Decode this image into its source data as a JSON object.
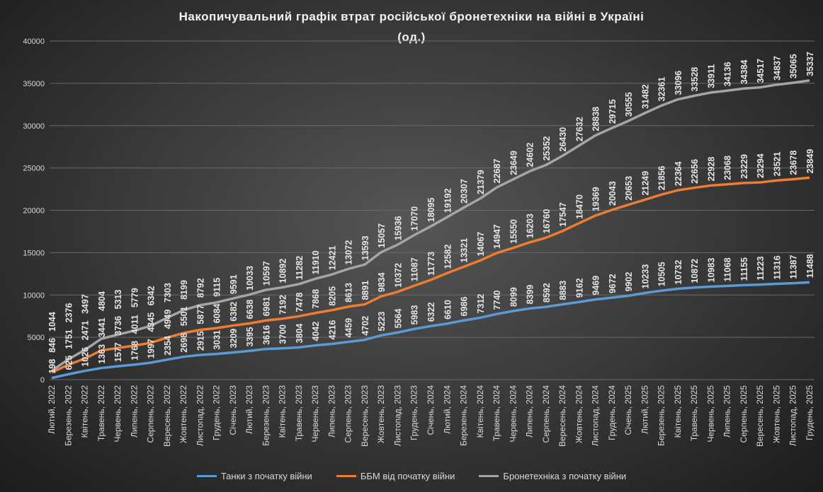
{
  "chart_data": {
    "type": "line",
    "title": "Накопичувальний графік втрат російської бронетехніки на війні в Україні",
    "subtitle": "(од.)",
    "xlabel": "",
    "ylabel": "",
    "ylim": [
      0,
      40000
    ],
    "yticks": [
      "0",
      "5000",
      "10000",
      "15000",
      "20000",
      "25000",
      "30000",
      "35000",
      "40000"
    ],
    "grid": true,
    "legend_position": "bottom",
    "categories": [
      "Лютий, 2022",
      "Березень, 2022",
      "Квітень, 2022",
      "Травень, 2022",
      "Червень, 2022",
      "Липень, 2022",
      "Серпень, 2022",
      "Вересень, 2022",
      "Жовтень, 2022",
      "Листопад, 2022",
      "Грудень, 2022",
      "Січень, 2023",
      "Лютий, 2023",
      "Березень, 2023",
      "Квітень, 2023",
      "Травень, 2023",
      "Червень, 2023",
      "Липень, 2023",
      "Серпень, 2023",
      "Вересень, 2023",
      "Жовтень, 2023",
      "Листопад, 2023",
      "Грудень, 2023",
      "Січень, 2024",
      "Лютий, 2024",
      "Березень, 2024",
      "Квітень, 2024",
      "Травень, 2024",
      "Червень, 2024",
      "Липень, 2024",
      "Серпень, 2024",
      "Вересень, 2024",
      "Жовтень, 2024",
      "Листопад, 2024",
      "Грудень, 2024",
      "Січень, 2025",
      "Лютий, 2025",
      "Березень, 2025",
      "Квітень, 2025",
      "Травень, 2025",
      "Червень, 2025",
      "Липень, 2025",
      "Серпень, 2025",
      "Вересень, 2025",
      "Жовтень, 2025",
      "Листопад, 2025",
      "Грудень, 2025"
    ],
    "series": [
      {
        "name": "Танки з початку війни",
        "color": "#5b9bd5",
        "values": [
          198,
          625,
          1026,
          1363,
          1577,
          1768,
          1997,
          2354,
          2698,
          2915,
          3031,
          3209,
          3395,
          3616,
          3700,
          3804,
          4042,
          4216,
          4459,
          4702,
          5223,
          5564,
          5983,
          6322,
          6610,
          6986,
          7312,
          7740,
          8099,
          8399,
          8592,
          8883,
          9162,
          9469,
          9672,
          9902,
          10233,
          10505,
          10732,
          10872,
          10983,
          11068,
          11155,
          11223,
          11316,
          11387,
          11488
        ]
      },
      {
        "name": "ББМ від початку війни",
        "color": "#ed7d31",
        "values": [
          846,
          1751,
          2471,
          3441,
          3736,
          4011,
          4345,
          4949,
          5501,
          5877,
          6084,
          6382,
          6638,
          6981,
          7192,
          7478,
          7868,
          8205,
          8613,
          8891,
          9834,
          10372,
          11087,
          11773,
          12582,
          13321,
          14067,
          14947,
          15550,
          16203,
          16760,
          17547,
          18470,
          19369,
          20043,
          20653,
          21249,
          21856,
          22364,
          22656,
          22928,
          23068,
          23229,
          23294,
          23521,
          23678,
          23849
        ]
      },
      {
        "name": "Бронетехніка з початку війни",
        "color": "#a5a5a5",
        "values": [
          1044,
          2376,
          3497,
          4804,
          5313,
          5779,
          6342,
          7303,
          8199,
          8792,
          9115,
          9591,
          10033,
          10597,
          10892,
          11282,
          11910,
          12421,
          13072,
          13593,
          15057,
          15936,
          17070,
          18095,
          19192,
          20307,
          21379,
          22687,
          23649,
          24602,
          25352,
          26430,
          27632,
          28838,
          29715,
          30555,
          31482,
          32361,
          33096,
          33528,
          33911,
          34136,
          34384,
          34517,
          34837,
          35065,
          35337
        ]
      }
    ]
  }
}
